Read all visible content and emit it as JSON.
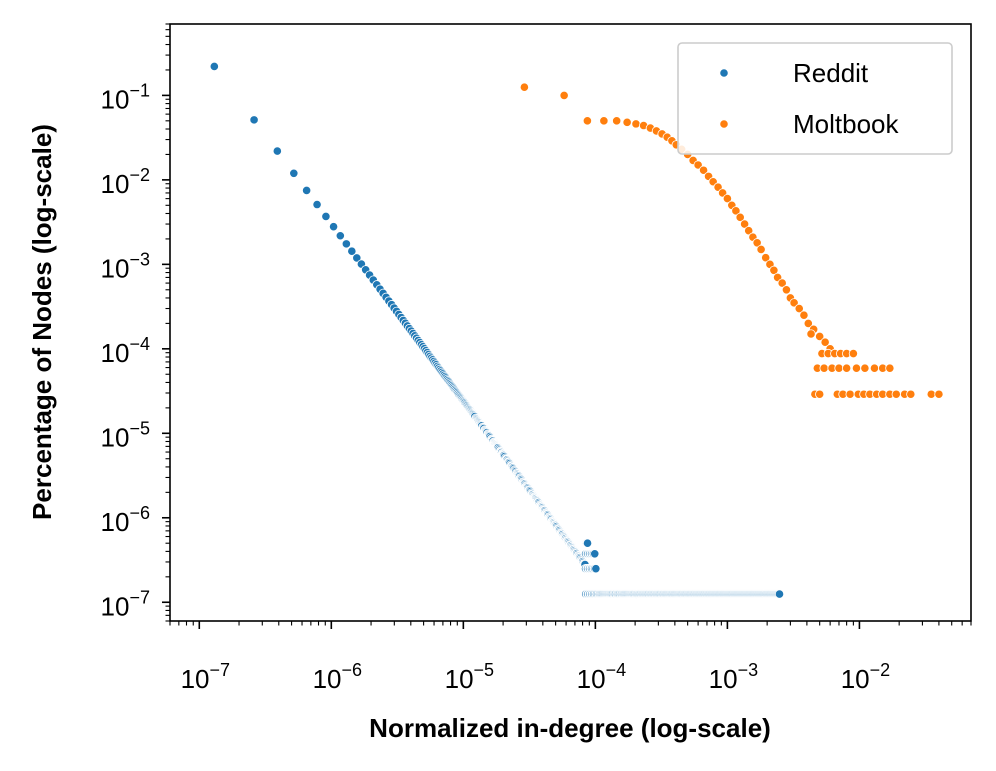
{
  "chart_data": {
    "type": "scatter",
    "title": "",
    "xlabel": "Normalized in-degree (log-scale)",
    "ylabel": "Percentage of Nodes (log-scale)",
    "xscale": "log",
    "yscale": "log",
    "xlim": [
      6e-08,
      0.07
    ],
    "ylim": [
      6e-08,
      0.7
    ],
    "grid": false,
    "legend_position": "top-right",
    "x_ticks": [
      {
        "base": "10",
        "exp": "−7"
      },
      {
        "base": "10",
        "exp": "−6"
      },
      {
        "base": "10",
        "exp": "−5"
      },
      {
        "base": "10",
        "exp": "−4"
      },
      {
        "base": "10",
        "exp": "−3"
      },
      {
        "base": "10",
        "exp": "−2"
      }
    ],
    "y_ticks": [
      {
        "base": "10",
        "exp": "−7"
      },
      {
        "base": "10",
        "exp": "−6"
      },
      {
        "base": "10",
        "exp": "−5"
      },
      {
        "base": "10",
        "exp": "−4"
      },
      {
        "base": "10",
        "exp": "−3"
      },
      {
        "base": "10",
        "exp": "−2"
      },
      {
        "base": "10",
        "exp": "−1"
      }
    ],
    "series": [
      {
        "name": "Reddit",
        "color": "#1f77b4",
        "model": {
          "x_unit": 1.3e-07,
          "y_first": 0.22,
          "exponent": -2.1,
          "count_floor": 1.25e-07,
          "x_max": 0.0025
        }
      },
      {
        "name": "Moltbook",
        "color": "#ff7f0e",
        "points": [
          [
            2.9e-05,
            0.125
          ],
          [
            5.8e-05,
            0.1
          ],
          [
            8.7e-05,
            0.05
          ],
          [
            0.000116,
            0.05
          ],
          [
            0.000145,
            0.05
          ],
          [
            0.000174,
            0.048
          ],
          [
            0.000203,
            0.046
          ],
          [
            0.000232,
            0.044
          ],
          [
            0.000261,
            0.041
          ],
          [
            0.00029,
            0.038
          ],
          [
            0.00032,
            0.035
          ],
          [
            0.00035,
            0.032
          ],
          [
            0.00038,
            0.029
          ],
          [
            0.00041,
            0.026
          ],
          [
            0.00045,
            0.023
          ],
          [
            0.0005,
            0.02
          ],
          [
            0.00055,
            0.017
          ],
          [
            0.0006,
            0.015
          ],
          [
            0.00066,
            0.013
          ],
          [
            0.00072,
            0.011
          ],
          [
            0.00078,
            0.0095
          ],
          [
            0.00085,
            0.0082
          ],
          [
            0.00092,
            0.007
          ],
          [
            0.001,
            0.006
          ],
          [
            0.00108,
            0.005
          ],
          [
            0.00116,
            0.0043
          ],
          [
            0.00125,
            0.0036
          ],
          [
            0.00135,
            0.003
          ],
          [
            0.00145,
            0.0025
          ],
          [
            0.00156,
            0.0021
          ],
          [
            0.00168,
            0.0018
          ],
          [
            0.0018,
            0.0015
          ],
          [
            0.00195,
            0.0012
          ],
          [
            0.0021,
            0.001
          ],
          [
            0.00225,
            0.00085
          ],
          [
            0.0024,
            0.0007
          ],
          [
            0.0026,
            0.0006
          ],
          [
            0.0028,
            0.0005
          ],
          [
            0.003,
            0.0004
          ],
          [
            0.0032,
            0.00035
          ],
          [
            0.0035,
            0.0003
          ],
          [
            0.0038,
            0.00025
          ],
          [
            0.0041,
            0.0002
          ],
          [
            0.0045,
            0.00017
          ],
          [
            0.005,
            0.00014
          ],
          [
            0.0055,
            0.00012
          ],
          [
            0.006,
            0.0001
          ],
          [
            0.0043,
            0.00015
          ],
          [
            0.0052,
            8.8e-05
          ],
          [
            0.0058,
            8.8e-05
          ],
          [
            0.0065,
            8.8e-05
          ],
          [
            0.0072,
            8.8e-05
          ],
          [
            0.008,
            8.8e-05
          ],
          [
            0.009,
            8.8e-05
          ],
          [
            0.0048,
            5.9e-05
          ],
          [
            0.0054,
            5.9e-05
          ],
          [
            0.0062,
            5.9e-05
          ],
          [
            0.007,
            5.9e-05
          ],
          [
            0.008,
            5.9e-05
          ],
          [
            0.0095,
            5.9e-05
          ],
          [
            0.011,
            5.9e-05
          ],
          [
            0.013,
            5.9e-05
          ],
          [
            0.015,
            5.9e-05
          ],
          [
            0.017,
            5.9e-05
          ],
          [
            0.0046,
            2.9e-05
          ],
          [
            0.005,
            2.9e-05
          ],
          [
            0.0068,
            2.9e-05
          ],
          [
            0.0075,
            2.9e-05
          ],
          [
            0.0085,
            2.9e-05
          ],
          [
            0.0098,
            2.9e-05
          ],
          [
            0.0108,
            2.9e-05
          ],
          [
            0.012,
            2.9e-05
          ],
          [
            0.0135,
            2.9e-05
          ],
          [
            0.015,
            2.9e-05
          ],
          [
            0.017,
            2.9e-05
          ],
          [
            0.019,
            2.9e-05
          ],
          [
            0.022,
            2.9e-05
          ],
          [
            0.0245,
            2.9e-05
          ],
          [
            0.035,
            2.9e-05
          ],
          [
            0.04,
            2.9e-05
          ]
        ]
      }
    ]
  }
}
